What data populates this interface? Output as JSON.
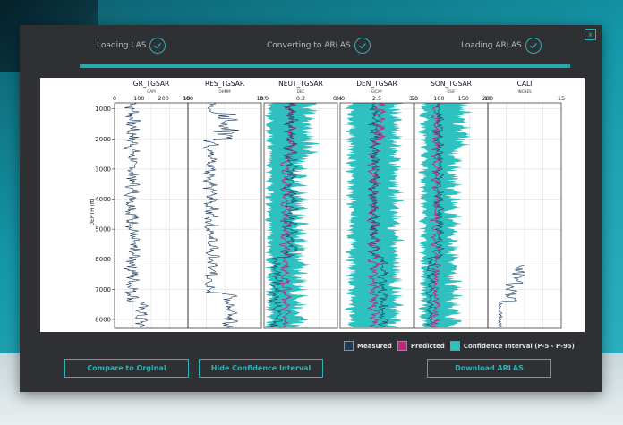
{
  "modal": {
    "close_label": "x",
    "steps": [
      {
        "label": "Loading LAS"
      },
      {
        "label": "Converting to ARLAS"
      },
      {
        "label": "Loading ARLAS"
      }
    ],
    "buttons": {
      "compare": "Compare to Orginal",
      "hide_ci": "Hide Confidence Interval",
      "download": "Download ARLAS"
    },
    "legend": [
      {
        "label": "Measured",
        "color": "#1b3a5c"
      },
      {
        "label": "Predicted",
        "color": "#c0267e"
      },
      {
        "label": "Confidence Interval (P-5  -  P-95)",
        "color": "#2fc1bf"
      }
    ],
    "colors": {
      "accent": "#2bb3b8",
      "measured": "#1b3a5c",
      "predicted": "#c0267e",
      "ci": "#2fc1bf"
    }
  },
  "chart_data": {
    "type": "line",
    "ylabel": "DEPTH (ft)",
    "ylim": [
      800,
      8300
    ],
    "yticks": [
      1000,
      2000,
      3000,
      4000,
      5000,
      6000,
      7000,
      8000
    ],
    "tracks": [
      {
        "title": "GR_TGSAR",
        "unit": "GAPI",
        "ticks": [
          "0",
          "100",
          "200",
          "300"
        ],
        "xlim": [
          0,
          300
        ]
      },
      {
        "title": "RES_TGSAR",
        "unit": "OHMM",
        "ticks": [
          "10¹",
          "10³"
        ],
        "xlim": [
          1,
          3
        ],
        "scale": "log"
      },
      {
        "title": "NEUT_TGSAR",
        "unit": "DEC",
        "ticks": [
          "0.0",
          "0.2",
          "0.4"
        ],
        "xlim": [
          0,
          0.45
        ]
      },
      {
        "title": "DEN_TGSAR",
        "unit": "G/CM³",
        "ticks": [
          "2.0",
          "2.5",
          "3.0"
        ],
        "xlim": [
          1.95,
          3.0
        ]
      },
      {
        "title": "SON_TGSAR",
        "unit": "US/F",
        "ticks": [
          "50",
          "100",
          "150",
          "200"
        ],
        "xlim": [
          50,
          200
        ]
      },
      {
        "title": "CALI",
        "unit": "INCHES",
        "ticks": [
          "10",
          "15"
        ],
        "xlim": [
          5,
          20
        ]
      }
    ]
  }
}
